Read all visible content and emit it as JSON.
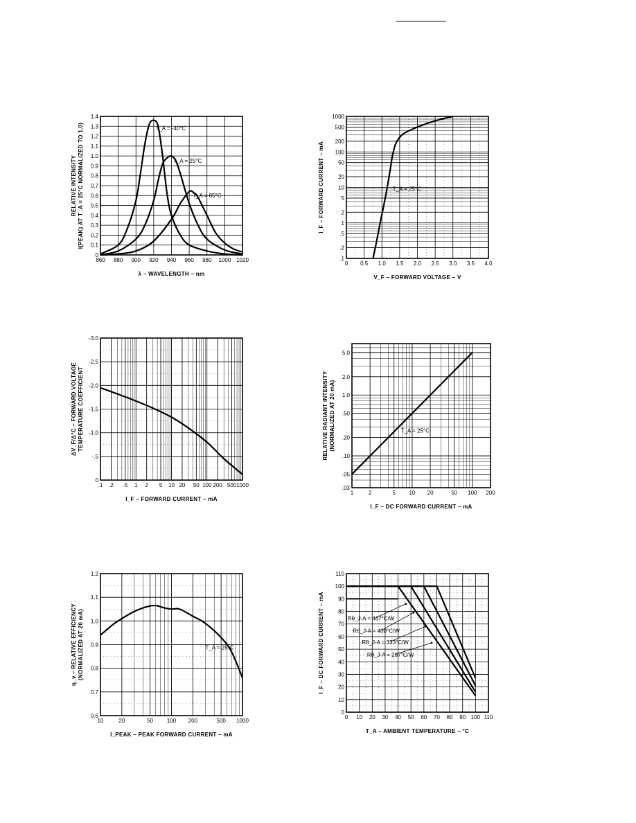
{
  "chart_data": [
    {
      "id": "spectral",
      "type": "line",
      "xlabel": "λ – WAVELENGTH – nm",
      "ylabel": [
        "RELATIVE INTENSITY",
        "I(PEAK) AT T_A = 25°C NORMALIZED TO 1.0)"
      ],
      "x_range": [
        860,
        1020
      ],
      "y_range": [
        0,
        1.4
      ],
      "x_ticks": [
        860,
        880,
        900,
        920,
        940,
        960,
        980,
        1000,
        1020
      ],
      "x_tick_labels": [
        "860",
        "880",
        "900",
        "920",
        "940",
        "960",
        "980",
        "1000",
        "1020"
      ],
      "y_ticks": [
        0,
        0.1,
        0.2,
        0.3,
        0.4,
        0.5,
        0.6,
        0.7,
        0.8,
        0.9,
        1.0,
        1.1,
        1.2,
        1.3,
        1.4
      ],
      "y_tick_labels": [
        "0",
        "0.1",
        "0.2",
        "0.3",
        "0.4",
        "0.5",
        "0.6",
        "0.7",
        "0.8",
        "0.9",
        "1.0",
        "1.1",
        "1.2",
        "1.3",
        "1.4"
      ],
      "series": [
        {
          "name": "T_A = -40°C",
          "x": [
            860,
            880,
            890,
            900,
            905,
            910,
            915,
            920,
            925,
            930,
            935,
            940,
            950,
            960,
            980,
            1000,
            1020
          ],
          "y": [
            0.01,
            0.1,
            0.26,
            0.55,
            0.82,
            1.12,
            1.32,
            1.36,
            1.3,
            1.0,
            0.62,
            0.4,
            0.2,
            0.1,
            0.04,
            0.01,
            0.0
          ]
        },
        {
          "name": "T_A = 25°C",
          "x": [
            860,
            880,
            900,
            910,
            920,
            925,
            930,
            935,
            940,
            945,
            950,
            960,
            970,
            980,
            1000,
            1020
          ],
          "y": [
            0.0,
            0.04,
            0.16,
            0.3,
            0.55,
            0.75,
            0.92,
            0.98,
            1.0,
            0.95,
            0.82,
            0.52,
            0.3,
            0.16,
            0.05,
            0.01
          ]
        },
        {
          "name": "T_A = 85°C",
          "x": [
            860,
            880,
            900,
            920,
            940,
            950,
            960,
            965,
            970,
            980,
            990,
            1000,
            1010,
            1020
          ],
          "y": [
            0.0,
            0.01,
            0.04,
            0.14,
            0.36,
            0.52,
            0.64,
            0.63,
            0.58,
            0.4,
            0.22,
            0.12,
            0.06,
            0.03
          ]
        }
      ]
    },
    {
      "id": "forward_current",
      "type": "line",
      "xlabel": "V_F – FORWARD VOLTAGE – V",
      "ylabel": [
        "I_F – FORWARD CURRENT – mA"
      ],
      "x_range": [
        0,
        4.0
      ],
      "y_range": [
        0.1,
        1000
      ],
      "y_scale": "log",
      "x_ticks": [
        0,
        0.5,
        1.0,
        1.5,
        2.0,
        2.5,
        3.0,
        3.5,
        4.0
      ],
      "x_tick_labels": [
        "0",
        "0.5",
        "1.0",
        "1.5",
        "2.0",
        "2.5",
        "3.0",
        "3.5",
        "4.0"
      ],
      "y_ticks": [
        0.1,
        0.2,
        0.5,
        1,
        2,
        5,
        10,
        20,
        50,
        100,
        200,
        500,
        1000
      ],
      "y_tick_labels": [
        ".1",
        ".2",
        ".5",
        "1",
        "2",
        "5",
        "10",
        "20",
        "50",
        "100",
        "200",
        "500",
        "1000"
      ],
      "annotation": "T_A = 25°C",
      "series": [
        {
          "name": "T_A = 25°C",
          "x": [
            0.75,
            0.85,
            0.95,
            1.05,
            1.15,
            1.25,
            1.3,
            1.4,
            1.6,
            2.0,
            2.5,
            3.0
          ],
          "y": [
            0.1,
            0.3,
            1,
            3,
            10,
            40,
            80,
            180,
            320,
            500,
            750,
            1000
          ]
        }
      ]
    },
    {
      "id": "temp_coefficient",
      "type": "line",
      "xlabel": "I_F – FORWARD CURRENT – mA",
      "ylabel": [
        "ΔV_F/Δ°C – FORWARD VOLTAGE",
        "TEMPERATURE COEFFICIENT"
      ],
      "x_range": [
        0.1,
        1000
      ],
      "x_scale": "log",
      "y_range": [
        0,
        -3.0
      ],
      "x_ticks": [
        0.1,
        0.2,
        0.5,
        1,
        2,
        5,
        10,
        20,
        50,
        100,
        200,
        500,
        1000
      ],
      "x_tick_labels": [
        ".1",
        ".2",
        ".5",
        "1",
        "2",
        "5",
        "10",
        "20",
        "50",
        "100",
        "200",
        "500",
        "1000"
      ],
      "y_ticks": [
        0,
        -0.5,
        -1.0,
        -1.5,
        -2.0,
        -2.5,
        -3.0
      ],
      "y_tick_labels": [
        "0",
        "-.5",
        "-1.0",
        "-1.5",
        "-2.0",
        "-2.5",
        "-3.0"
      ],
      "series": [
        {
          "name": "",
          "x": [
            0.1,
            0.3,
            1,
            3,
            10,
            30,
            100,
            300,
            1000
          ],
          "y": [
            -1.95,
            -1.82,
            -1.67,
            -1.52,
            -1.33,
            -1.1,
            -0.8,
            -0.45,
            -0.12
          ]
        }
      ]
    },
    {
      "id": "radiant_intensity",
      "type": "line",
      "xlabel": "I_F – DC FORWARD CURRENT – mA",
      "ylabel": [
        "RELATIVE RADIANT INTENSITY",
        "(NORMALIZED AT 20 mA)"
      ],
      "x_range": [
        1,
        200
      ],
      "x_scale": "log",
      "y_range": [
        0.03,
        7
      ],
      "y_scale": "log",
      "x_ticks": [
        1,
        2,
        5,
        10,
        20,
        50,
        100,
        200
      ],
      "x_tick_labels": [
        "1",
        "2",
        "5",
        "10",
        "20",
        "50",
        "100",
        "200"
      ],
      "y_ticks": [
        0.03,
        0.05,
        0.1,
        0.2,
        0.5,
        1.0,
        2.0,
        5.0
      ],
      "y_tick_labels": [
        ".03",
        ".05",
        ".10",
        ".20",
        ".50",
        "1.0",
        "2.0",
        "5.0"
      ],
      "annotation": "T_A = 25°C",
      "series": [
        {
          "name": "T_A = 25°C",
          "x": [
            1,
            2,
            5,
            10,
            20,
            50,
            100
          ],
          "y": [
            0.05,
            0.1,
            0.25,
            0.5,
            1.0,
            2.5,
            5.0
          ]
        }
      ]
    },
    {
      "id": "efficiency",
      "type": "line",
      "xlabel": "I_PEAK – PEAK FORWARD CURRENT – mA",
      "ylabel": [
        "η_v – RELATIVE EFFICIENCY",
        "(NORMALIZED AT 20 mA)"
      ],
      "x_range": [
        10,
        1000
      ],
      "x_scale": "log",
      "y_range": [
        0.6,
        1.2
      ],
      "x_ticks": [
        10,
        20,
        50,
        100,
        200,
        500,
        1000
      ],
      "x_tick_labels": [
        "10",
        "20",
        "50",
        "100",
        "200",
        "500",
        "1000"
      ],
      "y_ticks": [
        0.6,
        0.7,
        0.8,
        0.9,
        1.0,
        1.1,
        1.2
      ],
      "y_tick_labels": [
        "0.6",
        "0.7",
        "0.8",
        "0.9",
        "1.0",
        "1.1",
        "1.2"
      ],
      "annotation": "T_A = 25°C",
      "series": [
        {
          "name": "T_A = 25°C",
          "x": [
            10,
            15,
            20,
            30,
            45,
            60,
            80,
            100,
            130,
            200,
            300,
            500,
            700,
            1000
          ],
          "y": [
            0.94,
            0.985,
            1.01,
            1.04,
            1.06,
            1.065,
            1.055,
            1.05,
            1.05,
            1.02,
            0.99,
            0.93,
            0.87,
            0.76
          ]
        }
      ]
    },
    {
      "id": "derating",
      "type": "line",
      "xlabel": "T_A – AMBIENT TEMPERATURE – °C",
      "ylabel": [
        "I_F – DC FORWARD CURRENT – mA"
      ],
      "x_range": [
        0,
        110
      ],
      "y_range": [
        0,
        110
      ],
      "x_ticks": [
        0,
        10,
        20,
        30,
        40,
        50,
        60,
        70,
        80,
        90,
        100,
        110
      ],
      "x_tick_labels": [
        "0",
        "10",
        "20",
        "30",
        "40",
        "50",
        "60",
        "70",
        "80",
        "90",
        "100",
        "110"
      ],
      "y_ticks": [
        0,
        10,
        20,
        30,
        40,
        50,
        60,
        70,
        80,
        90,
        100,
        110
      ],
      "y_tick_labels": [
        "0",
        "10",
        "20",
        "30",
        "40",
        "50",
        "60",
        "70",
        "80",
        "90",
        "100",
        "110"
      ],
      "series": [
        {
          "name": "Rθ_J-A = 467°C/W",
          "x": [
            0,
            40,
            100
          ],
          "y": [
            100,
            100,
            13
          ]
        },
        {
          "name": "Rθ_J-A = 400°C/W",
          "x": [
            0,
            50,
            100
          ],
          "y": [
            100,
            100,
            16
          ]
        },
        {
          "name": "Rθ_J-A = 333°C/W",
          "x": [
            0,
            60,
            100
          ],
          "y": [
            100,
            100,
            21
          ]
        },
        {
          "name": "Rθ_J-A = 267°C/W",
          "x": [
            0,
            70,
            100
          ],
          "y": [
            100,
            100,
            27
          ]
        }
      ],
      "extra_lines": [
        {
          "x": [
            0,
            40
          ],
          "y": [
            90,
            90
          ]
        }
      ],
      "labels": [
        "Rθ_J-A = 467°C/W",
        "Rθ_J-A = 400°C/W",
        "Rθ_J-A = 333°C/W",
        "Rθ_J-A = 267°C/W"
      ]
    }
  ]
}
